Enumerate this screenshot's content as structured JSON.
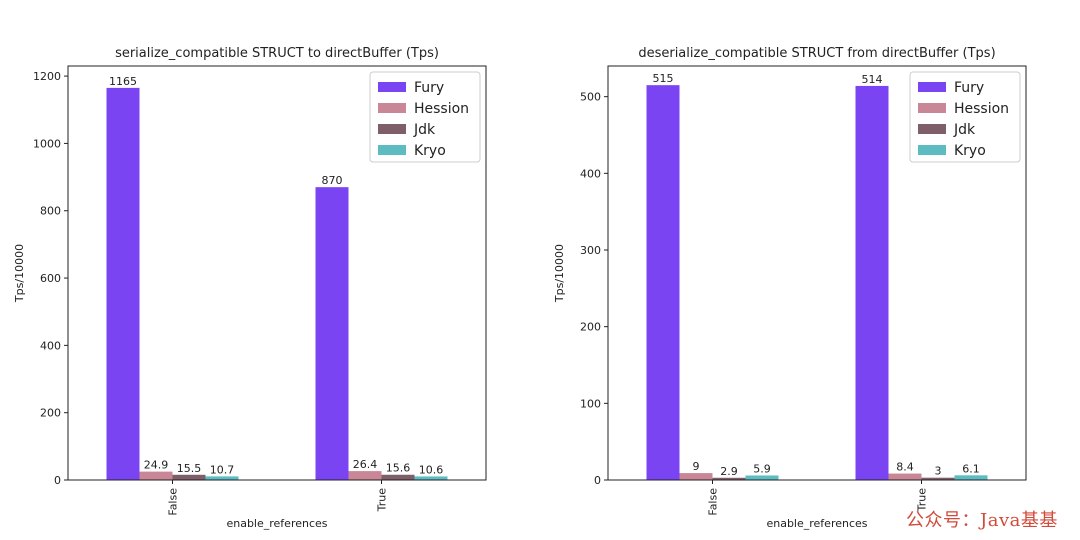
{
  "watermark": "公众号：Java基基",
  "colors": {
    "Fury": "#7a44f2",
    "Hession": "#c98696",
    "Jdk": "#7e5f69",
    "Kryo": "#5cbcc2"
  },
  "chart_data": [
    {
      "type": "bar",
      "title": "serialize_compatible STRUCT to directBuffer (Tps)",
      "xlabel": "enable_references",
      "ylabel": "Tps/10000",
      "categories": [
        "False",
        "True"
      ],
      "ylim": [
        0,
        1230
      ],
      "yticks": [
        0,
        200,
        400,
        600,
        800,
        1000,
        1200
      ],
      "legend_placement": "top-right",
      "grid": false,
      "series": [
        {
          "name": "Fury",
          "values": [
            1165,
            870
          ],
          "labels": [
            "1165",
            "870"
          ]
        },
        {
          "name": "Hession",
          "values": [
            24.9,
            26.4
          ],
          "labels": [
            "24.9",
            "26.4"
          ]
        },
        {
          "name": "Jdk",
          "values": [
            15.5,
            15.6
          ],
          "labels": [
            "15.5",
            "15.6"
          ]
        },
        {
          "name": "Kryo",
          "values": [
            10.7,
            10.6
          ],
          "labels": [
            "10.7",
            "10.6"
          ]
        }
      ]
    },
    {
      "type": "bar",
      "title": "deserialize_compatible STRUCT from directBuffer (Tps)",
      "xlabel": "enable_references",
      "ylabel": "Tps/10000",
      "categories": [
        "False",
        "True"
      ],
      "ylim": [
        0,
        540
      ],
      "yticks": [
        0,
        100,
        200,
        300,
        400,
        500
      ],
      "legend_placement": "top-right",
      "grid": false,
      "series": [
        {
          "name": "Fury",
          "values": [
            515,
            514
          ],
          "labels": [
            "515",
            "514"
          ]
        },
        {
          "name": "Hession",
          "values": [
            9,
            8.4
          ],
          "labels": [
            "9",
            "8.4"
          ]
        },
        {
          "name": "Jdk",
          "values": [
            2.9,
            3
          ],
          "labels": [
            "2.9",
            "3"
          ]
        },
        {
          "name": "Kryo",
          "values": [
            5.9,
            6.1
          ],
          "labels": [
            "5.9",
            "6.1"
          ]
        }
      ]
    }
  ]
}
